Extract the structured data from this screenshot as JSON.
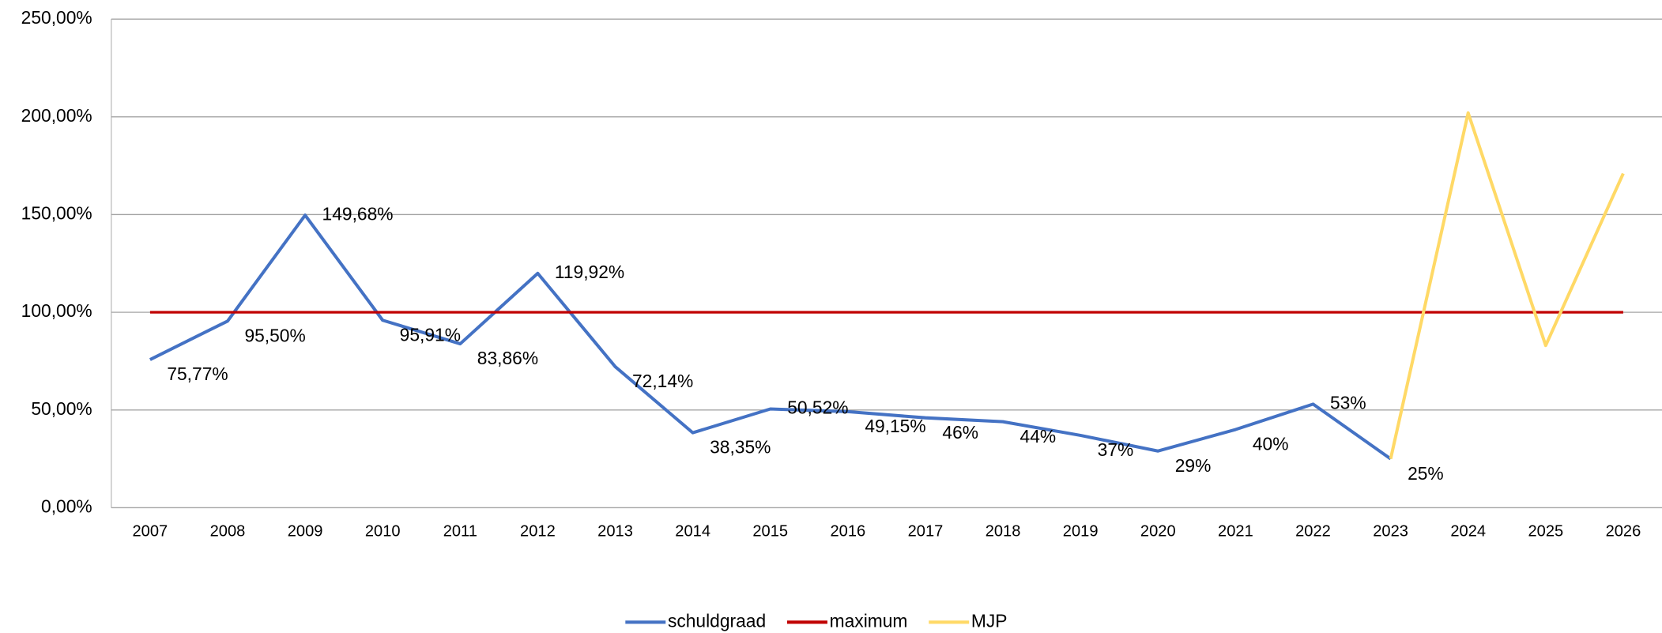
{
  "chart_data": {
    "type": "line",
    "categories": [
      "2007",
      "2008",
      "2009",
      "2010",
      "2011",
      "2012",
      "2013",
      "2014",
      "2015",
      "2016",
      "2017",
      "2018",
      "2019",
      "2020",
      "2021",
      "2022",
      "2023",
      "2024",
      "2025",
      "2026"
    ],
    "series": [
      {
        "name": "schuldgraad",
        "color": "#4472c4",
        "values": [
          75.77,
          95.5,
          149.68,
          95.91,
          83.86,
          119.92,
          72.14,
          38.35,
          50.52,
          49.15,
          46,
          44,
          37,
          29,
          40,
          53,
          25,
          null,
          null,
          null
        ],
        "value_labels": [
          "75,77%",
          "95,50%",
          "149,68%",
          "95,91%",
          "83,86%",
          "119,92%",
          "72,14%",
          "38,35%",
          "50,52%",
          "49,15%",
          "46%",
          "44%",
          "37%",
          "29%",
          "40%",
          "53%",
          "25%",
          null,
          null,
          null
        ]
      },
      {
        "name": "maximum",
        "color": "#c00000",
        "values": [
          100,
          100,
          100,
          100,
          100,
          100,
          100,
          100,
          100,
          100,
          100,
          100,
          100,
          100,
          100,
          100,
          100,
          100,
          100,
          100
        ]
      },
      {
        "name": "MJP",
        "color": "#ffd966",
        "values": [
          null,
          null,
          null,
          null,
          null,
          null,
          null,
          null,
          null,
          null,
          null,
          null,
          null,
          null,
          null,
          null,
          25,
          202,
          83,
          171
        ]
      }
    ],
    "ylim": [
      0,
      250
    ],
    "yticks": [
      {
        "value": 0,
        "label": "0,00%"
      },
      {
        "value": 50,
        "label": "50,00%"
      },
      {
        "value": 100,
        "label": "100,00%"
      },
      {
        "value": 150,
        "label": "150,00%"
      },
      {
        "value": 200,
        "label": "200,00%"
      },
      {
        "value": 250,
        "label": "250,00%"
      }
    ],
    "grid": true,
    "legend": "bottom"
  }
}
